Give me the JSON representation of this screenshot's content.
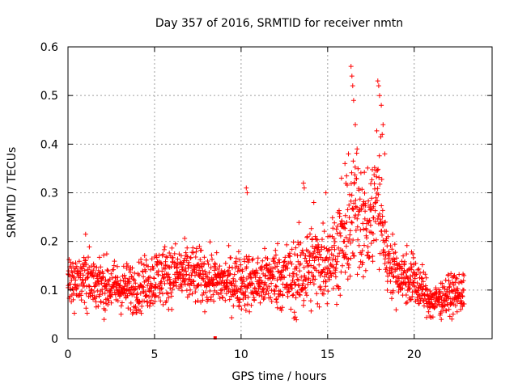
{
  "chart_data": {
    "type": "scatter",
    "title": "Day 357 of 2016, SRMTID for receiver nmtn",
    "xlabel": "GPS time / hours",
    "ylabel": "SRMTID / TECUs",
    "xlim": [
      0,
      24.5
    ],
    "ylim": [
      0,
      0.6
    ],
    "x_ticks": [
      0,
      5,
      10,
      15,
      20
    ],
    "x_tick_labels": [
      "0",
      "5",
      "10",
      "15",
      "20"
    ],
    "y_ticks": [
      0,
      0.1,
      0.2,
      0.3,
      0.4,
      0.5,
      0.6
    ],
    "y_tick_labels": [
      "0",
      "0.1",
      "0.2",
      "0.3",
      "0.4",
      "0.5",
      "0.6"
    ],
    "grid": true,
    "marker": "plus",
    "color": "#ff0000",
    "profile": [
      {
        "t": 0.0,
        "mean": 0.115,
        "spread": 0.045
      },
      {
        "t": 1.0,
        "mean": 0.125,
        "spread": 0.06
      },
      {
        "t": 2.0,
        "mean": 0.11,
        "spread": 0.05
      },
      {
        "t": 3.0,
        "mean": 0.105,
        "spread": 0.045
      },
      {
        "t": 4.0,
        "mean": 0.105,
        "spread": 0.045
      },
      {
        "t": 5.0,
        "mean": 0.125,
        "spread": 0.055
      },
      {
        "t": 6.0,
        "mean": 0.135,
        "spread": 0.055
      },
      {
        "t": 7.0,
        "mean": 0.13,
        "spread": 0.055
      },
      {
        "t": 8.0,
        "mean": 0.125,
        "spread": 0.05
      },
      {
        "t": 9.0,
        "mean": 0.115,
        "spread": 0.045
      },
      {
        "t": 10.0,
        "mean": 0.12,
        "spread": 0.055
      },
      {
        "t": 11.0,
        "mean": 0.115,
        "spread": 0.05
      },
      {
        "t": 12.0,
        "mean": 0.13,
        "spread": 0.06
      },
      {
        "t": 13.0,
        "mean": 0.12,
        "spread": 0.07
      },
      {
        "t": 14.0,
        "mean": 0.15,
        "spread": 0.075
      },
      {
        "t": 15.0,
        "mean": 0.16,
        "spread": 0.07
      },
      {
        "t": 16.0,
        "mean": 0.2,
        "spread": 0.09
      },
      {
        "t": 16.8,
        "mean": 0.28,
        "spread": 0.13
      },
      {
        "t": 17.3,
        "mean": 0.22,
        "spread": 0.08
      },
      {
        "t": 17.9,
        "mean": 0.3,
        "spread": 0.14
      },
      {
        "t": 18.4,
        "mean": 0.17,
        "spread": 0.06
      },
      {
        "t": 19.0,
        "mean": 0.135,
        "spread": 0.05
      },
      {
        "t": 20.0,
        "mean": 0.12,
        "spread": 0.05
      },
      {
        "t": 21.0,
        "mean": 0.075,
        "spread": 0.03
      },
      {
        "t": 22.0,
        "mean": 0.09,
        "spread": 0.035
      },
      {
        "t": 22.8,
        "mean": 0.095,
        "spread": 0.035
      }
    ],
    "peaks": [
      {
        "x": 16.35,
        "y": 0.56
      },
      {
        "x": 16.4,
        "y": 0.54
      },
      {
        "x": 16.45,
        "y": 0.52
      },
      {
        "x": 16.5,
        "y": 0.49
      },
      {
        "x": 16.6,
        "y": 0.44
      },
      {
        "x": 16.7,
        "y": 0.39
      },
      {
        "x": 17.9,
        "y": 0.53
      },
      {
        "x": 17.95,
        "y": 0.52
      },
      {
        "x": 18.0,
        "y": 0.5
      },
      {
        "x": 18.1,
        "y": 0.48
      },
      {
        "x": 18.2,
        "y": 0.44
      },
      {
        "x": 18.15,
        "y": 0.42
      },
      {
        "x": 18.3,
        "y": 0.38
      },
      {
        "x": 10.3,
        "y": 0.31
      },
      {
        "x": 10.35,
        "y": 0.3
      },
      {
        "x": 13.6,
        "y": 0.32
      },
      {
        "x": 13.65,
        "y": 0.31
      },
      {
        "x": 14.9,
        "y": 0.3
      },
      {
        "x": 14.2,
        "y": 0.28
      },
      {
        "x": 15.8,
        "y": 0.33
      },
      {
        "x": 16.0,
        "y": 0.36
      },
      {
        "x": 16.2,
        "y": 0.38
      }
    ],
    "n_points": 1800,
    "t_end": 22.9,
    "marker_square": {
      "x": 8.5,
      "y": 0.0
    }
  }
}
